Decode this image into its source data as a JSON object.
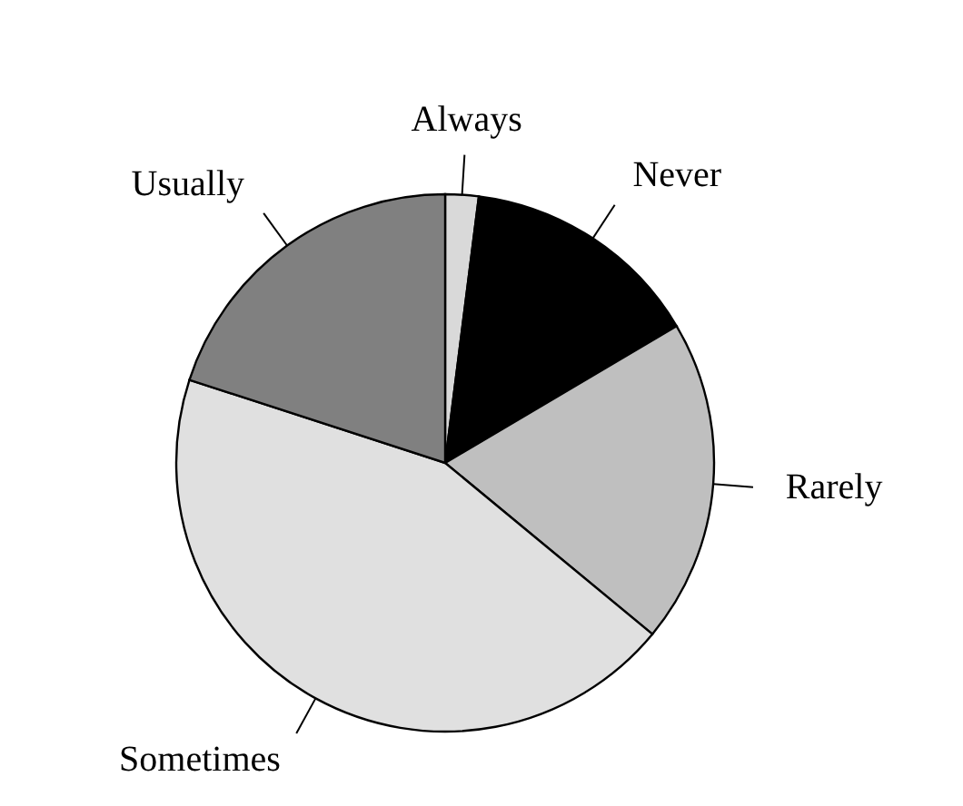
{
  "chart_data": {
    "type": "pie",
    "categories": [
      "Always",
      "Never",
      "Rarely",
      "Sometimes",
      "Usually"
    ],
    "values": [
      2,
      14.5,
      19.5,
      44,
      20
    ],
    "colors": [
      "#d9d9d9",
      "#000000",
      "#bfbfbf",
      "#e0e0e0",
      "#808080"
    ]
  }
}
